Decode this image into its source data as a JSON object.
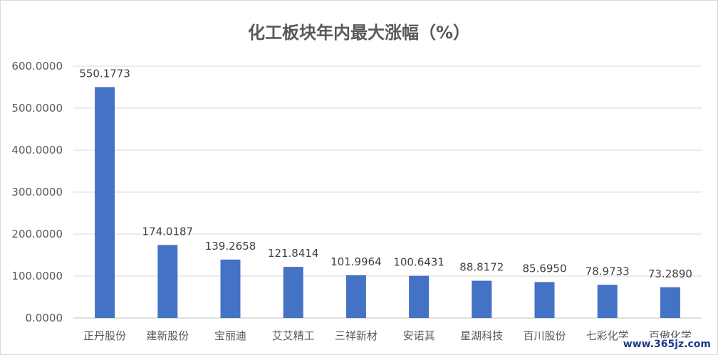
{
  "chart_data": {
    "type": "bar",
    "title": "化工板块年内最大涨幅（%）",
    "categories": [
      "正丹股份",
      "建新股份",
      "宝丽迪",
      "艾艾精工",
      "三祥新材",
      "安诺其",
      "星湖科技",
      "百川股份",
      "七彩化学",
      "百傲化学"
    ],
    "values": [
      550.1773,
      174.0187,
      139.2658,
      121.8414,
      101.9964,
      100.6431,
      88.8172,
      85.695,
      78.9733,
      73.289
    ],
    "data_labels": [
      "550.1773",
      "174.0187",
      "139.2658",
      "121.8414",
      "101.9964",
      "100.6431",
      "88.8172",
      "85.6950",
      "78.9733",
      "73.2890"
    ],
    "yticks": [
      "0.0000",
      "100.0000",
      "200.0000",
      "300.0000",
      "400.0000",
      "500.0000",
      "600.0000"
    ],
    "ylim": [
      0,
      600
    ],
    "grid": true,
    "bar_color": "#4472C4",
    "xlabel": "",
    "ylabel": ""
  },
  "watermark": "www.365jz.com"
}
